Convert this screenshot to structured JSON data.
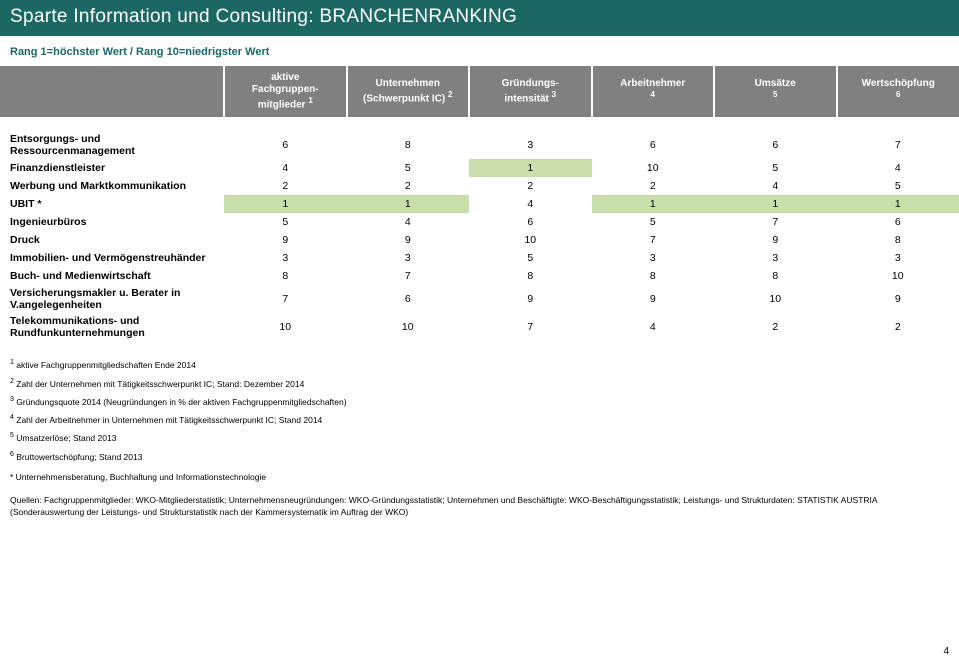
{
  "title": "Sparte Information und Consulting: BRANCHENRANKING",
  "subtitle": "Rang 1=höchster Wert / Rang 10=niedrigster Wert",
  "headers": [
    {
      "label_line1": "",
      "label_line2": "",
      "sup": ""
    },
    {
      "label_line1": "aktive",
      "label_line2": "Fachgruppen-mitglieder",
      "sup": "1"
    },
    {
      "label_line1": "Unternehmen",
      "label_line2": "(Schwerpunkt IC)",
      "sup": "2"
    },
    {
      "label_line1": "Gründungs-",
      "label_line2": "intensität",
      "sup": "3"
    },
    {
      "label_line1": "Arbeitnehmer",
      "label_line2": "",
      "sup": "4"
    },
    {
      "label_line1": "Umsätze",
      "label_line2": "",
      "sup": "5"
    },
    {
      "label_line1": "Wertschöpfung",
      "label_line2": "",
      "sup": "6"
    }
  ],
  "rows": [
    {
      "label": "Entsorgungs- und Ressourcenmanagement",
      "vals": [
        "6",
        "8",
        "3",
        "6",
        "6",
        "7"
      ],
      "hl": [
        false,
        false,
        false,
        false,
        false,
        false
      ]
    },
    {
      "label": "Finanzdienstleister",
      "vals": [
        "4",
        "5",
        "1",
        "10",
        "5",
        "4"
      ],
      "hl": [
        false,
        false,
        true,
        false,
        false,
        false
      ]
    },
    {
      "label": "Werbung und Marktkommunikation",
      "vals": [
        "2",
        "2",
        "2",
        "2",
        "4",
        "5"
      ],
      "hl": [
        false,
        false,
        false,
        false,
        false,
        false
      ]
    },
    {
      "label": "UBIT *",
      "vals": [
        "1",
        "1",
        "4",
        "1",
        "1",
        "1"
      ],
      "hl": [
        true,
        true,
        false,
        true,
        true,
        true
      ]
    },
    {
      "label": "Ingenieurbüros",
      "vals": [
        "5",
        "4",
        "6",
        "5",
        "7",
        "6"
      ],
      "hl": [
        false,
        false,
        false,
        false,
        false,
        false
      ]
    },
    {
      "label": "Druck",
      "vals": [
        "9",
        "9",
        "10",
        "7",
        "9",
        "8"
      ],
      "hl": [
        false,
        false,
        false,
        false,
        false,
        false
      ]
    },
    {
      "label": "Immobilien- und Vermögenstreuhänder",
      "vals": [
        "3",
        "3",
        "5",
        "3",
        "3",
        "3"
      ],
      "hl": [
        false,
        false,
        false,
        false,
        false,
        false
      ]
    },
    {
      "label": "Buch- und Medienwirtschaft",
      "vals": [
        "8",
        "7",
        "8",
        "8",
        "8",
        "10"
      ],
      "hl": [
        false,
        false,
        false,
        false,
        false,
        false
      ]
    },
    {
      "label": "Versicherungsmakler u. Berater in V.angelegenheiten",
      "vals": [
        "7",
        "6",
        "9",
        "9",
        "10",
        "9"
      ],
      "hl": [
        false,
        false,
        false,
        false,
        false,
        false
      ]
    },
    {
      "label": "Telekommunikations- und Rundfunkunternehmungen",
      "vals": [
        "10",
        "10",
        "7",
        "4",
        "2",
        "2"
      ],
      "hl": [
        false,
        false,
        false,
        false,
        false,
        false
      ]
    }
  ],
  "footnotes": [
    {
      "sup": "1",
      "text": "aktive Fachgruppenmitgliedschaften Ende 2014"
    },
    {
      "sup": "2",
      "text": "Zahl der Unternehmen mit Tätigkeitsschwerpunkt IC; Stand: Dezember 2014"
    },
    {
      "sup": "3",
      "text": "Gründungsquote 2014 (Neugründungen in % der aktiven Fachgruppenmitgliedschaften)"
    },
    {
      "sup": "4",
      "text": "Zahl der Arbeitnehmer in Unternehmen mit Tätigkeitsschwerpunkt IC; Stand 2014"
    },
    {
      "sup": "5",
      "text": "Umsatzerlöse; Stand 2013"
    },
    {
      "sup": "6",
      "text": "Bruttowertschöpfung; Stand 2013"
    }
  ],
  "starnote": "* Unternehmensberatung, Buchhaltung und Informationstechnologie",
  "sources": "Quellen: Fachgruppenmitglieder: WKO-Mitgliederstatistik; Unternehmensneugründungen: WKO-Gründungsstatistik; Unternehmen und Beschäftigte: WKO-Beschäftigungsstatistik; Leistungs- und Strukturdaten: STATISTIK AUSTRIA (Sonderauswertung der Leistungs- und Strukturstatistik nach der Kammersystematik im Auftrag der WKO)",
  "page_number": "4",
  "colors": {
    "teal": "#1b6863",
    "header_gray": "#808080",
    "highlight": "#c9dfab"
  }
}
